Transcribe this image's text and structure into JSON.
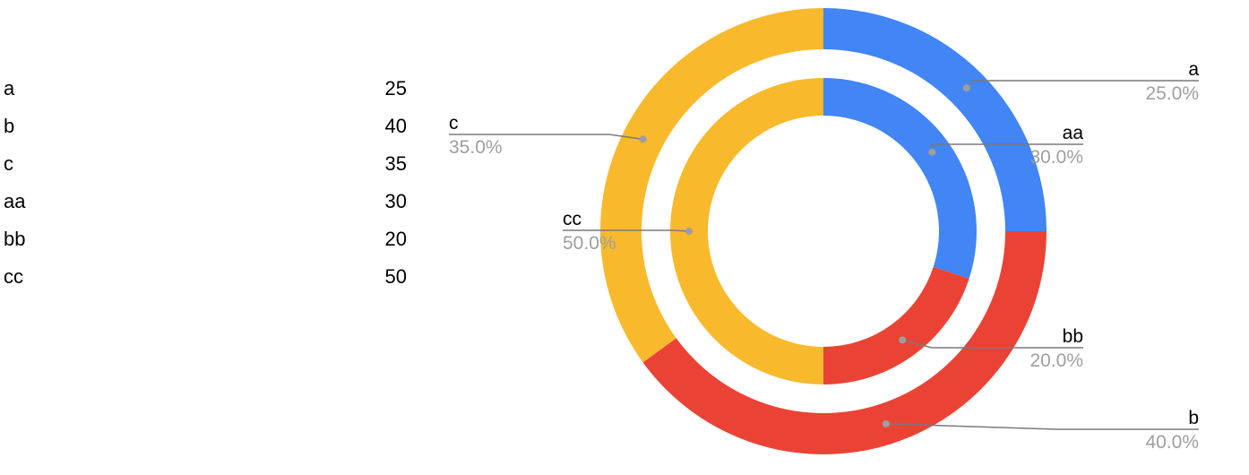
{
  "table": {
    "rows": [
      {
        "label": "a",
        "value": "25"
      },
      {
        "label": "b",
        "value": "40"
      },
      {
        "label": "c",
        "value": "35"
      },
      {
        "label": "aa",
        "value": "30"
      },
      {
        "label": "bb",
        "value": "20"
      },
      {
        "label": "cc",
        "value": "50"
      }
    ]
  },
  "chart_data": {
    "type": "pie",
    "title": "",
    "rings": [
      {
        "ring": "outer",
        "slices": [
          {
            "label": "a",
            "value": 25,
            "percent": "25.0%",
            "color": "#4285F4"
          },
          {
            "label": "b",
            "value": 40,
            "percent": "40.0%",
            "color": "#EA4335"
          },
          {
            "label": "c",
            "value": 35,
            "percent": "35.0%",
            "color": "#F9B92D"
          }
        ]
      },
      {
        "ring": "inner",
        "slices": [
          {
            "label": "aa",
            "value": 30,
            "percent": "30.0%",
            "color": "#4285F4"
          },
          {
            "label": "bb",
            "value": 20,
            "percent": "20.0%",
            "color": "#EA4335"
          },
          {
            "label": "cc",
            "value": 50,
            "percent": "50.0%",
            "color": "#F9B92D"
          }
        ]
      }
    ],
    "legend": "none",
    "label_style": "callout lines with label and percent"
  }
}
